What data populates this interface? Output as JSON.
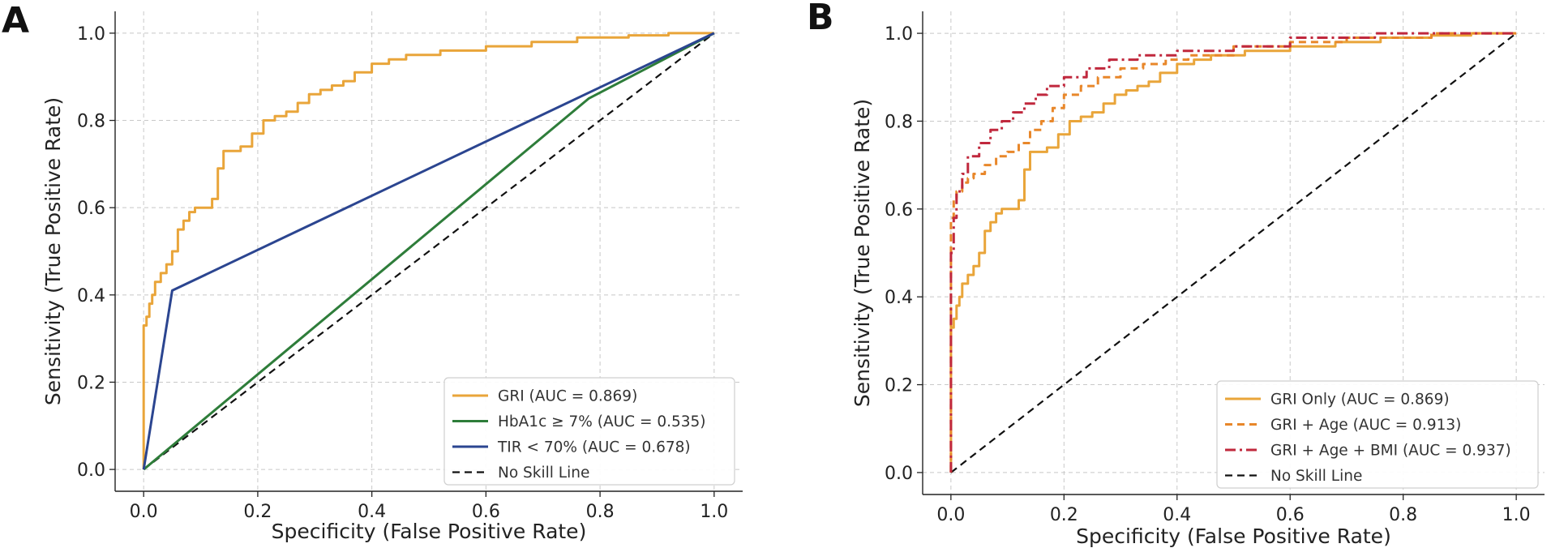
{
  "chart_data": [
    {
      "type": "line",
      "panel_label": "A",
      "xlabel": "Specificity (False Positive Rate)",
      "ylabel": "Sensitivity (True Positive Rate)",
      "xlim": [
        -0.05,
        1.05
      ],
      "ylim": [
        -0.05,
        1.05
      ],
      "xticks": [
        0.0,
        0.2,
        0.4,
        0.6,
        0.8,
        1.0
      ],
      "yticks": [
        0.0,
        0.2,
        0.4,
        0.6,
        0.8,
        1.0
      ],
      "xtick_labels": [
        "0.0",
        "0.2",
        "0.4",
        "0.6",
        "0.8",
        "1.0"
      ],
      "ytick_labels": [
        "0.0",
        "0.2",
        "0.4",
        "0.6",
        "0.8",
        "1.0"
      ],
      "grid": true,
      "legend_position": "lower-right",
      "series": [
        {
          "name": "GRI (AUC = 0.869)",
          "color": "#e9a53a",
          "style": "solid",
          "x": [
            0,
            0,
            0.005,
            0.005,
            0.01,
            0.01,
            0.015,
            0.015,
            0.02,
            0.02,
            0.03,
            0.03,
            0.04,
            0.04,
            0.05,
            0.05,
            0.06,
            0.06,
            0.07,
            0.07,
            0.08,
            0.08,
            0.09,
            0.09,
            0.12,
            0.12,
            0.13,
            0.13,
            0.14,
            0.14,
            0.17,
            0.17,
            0.19,
            0.19,
            0.21,
            0.21,
            0.23,
            0.23,
            0.25,
            0.25,
            0.27,
            0.27,
            0.29,
            0.29,
            0.31,
            0.31,
            0.33,
            0.33,
            0.35,
            0.35,
            0.37,
            0.37,
            0.4,
            0.4,
            0.43,
            0.43,
            0.46,
            0.46,
            0.52,
            0.52,
            0.6,
            0.6,
            0.68,
            0.68,
            0.76,
            0.76,
            0.85,
            0.85,
            0.92,
            0.92,
            1.0
          ],
          "y": [
            0,
            0.33,
            0.33,
            0.35,
            0.35,
            0.38,
            0.38,
            0.4,
            0.4,
            0.43,
            0.43,
            0.45,
            0.45,
            0.47,
            0.47,
            0.5,
            0.5,
            0.55,
            0.55,
            0.57,
            0.57,
            0.59,
            0.59,
            0.6,
            0.6,
            0.62,
            0.62,
            0.69,
            0.69,
            0.73,
            0.73,
            0.74,
            0.74,
            0.77,
            0.77,
            0.8,
            0.8,
            0.81,
            0.81,
            0.82,
            0.82,
            0.84,
            0.84,
            0.86,
            0.86,
            0.87,
            0.87,
            0.88,
            0.88,
            0.89,
            0.89,
            0.91,
            0.91,
            0.93,
            0.93,
            0.94,
            0.94,
            0.95,
            0.95,
            0.96,
            0.96,
            0.97,
            0.97,
            0.98,
            0.98,
            0.99,
            0.99,
            0.995,
            0.995,
            1.0,
            1.0
          ]
        },
        {
          "name": "HbA1c ≥ 7% (AUC = 0.535)",
          "color": "#2e7d3a",
          "style": "solid",
          "x": [
            0,
            0.78,
            1.0
          ],
          "y": [
            0,
            0.85,
            1.0
          ]
        },
        {
          "name": "TIR < 70% (AUC = 0.678)",
          "color": "#2b4590",
          "style": "solid",
          "x": [
            0,
            0.05,
            1.0
          ],
          "y": [
            0,
            0.41,
            1.0
          ]
        },
        {
          "name": "No Skill Line",
          "color": "#111111",
          "style": "dashed",
          "x": [
            0,
            1.0
          ],
          "y": [
            0,
            1.0
          ]
        }
      ]
    },
    {
      "type": "line",
      "panel_label": "B",
      "xlabel": "Specificity (False Positive Rate)",
      "ylabel": "Sensitivity (True Positive Rate)",
      "xlim": [
        -0.05,
        1.05
      ],
      "ylim": [
        -0.05,
        1.05
      ],
      "xticks": [
        0.0,
        0.2,
        0.4,
        0.6,
        0.8,
        1.0
      ],
      "yticks": [
        0.0,
        0.2,
        0.4,
        0.6,
        0.8,
        1.0
      ],
      "xtick_labels": [
        "0.0",
        "0.2",
        "0.4",
        "0.6",
        "0.8",
        "1.0"
      ],
      "ytick_labels": [
        "0.0",
        "0.2",
        "0.4",
        "0.6",
        "0.8",
        "1.0"
      ],
      "grid": true,
      "legend_position": "lower-right",
      "series": [
        {
          "name": "GRI Only (AUC = 0.869)",
          "color": "#e9a53a",
          "style": "solid",
          "x": [
            0,
            0,
            0.005,
            0.005,
            0.01,
            0.01,
            0.015,
            0.015,
            0.02,
            0.02,
            0.03,
            0.03,
            0.04,
            0.04,
            0.05,
            0.05,
            0.06,
            0.06,
            0.07,
            0.07,
            0.08,
            0.08,
            0.09,
            0.09,
            0.12,
            0.12,
            0.13,
            0.13,
            0.14,
            0.14,
            0.17,
            0.17,
            0.19,
            0.19,
            0.21,
            0.21,
            0.23,
            0.23,
            0.25,
            0.25,
            0.27,
            0.27,
            0.29,
            0.29,
            0.31,
            0.31,
            0.33,
            0.33,
            0.35,
            0.35,
            0.37,
            0.37,
            0.4,
            0.4,
            0.43,
            0.43,
            0.46,
            0.46,
            0.52,
            0.52,
            0.6,
            0.6,
            0.68,
            0.68,
            0.76,
            0.76,
            0.85,
            0.85,
            0.92,
            0.92,
            1.0
          ],
          "y": [
            0,
            0.33,
            0.33,
            0.35,
            0.35,
            0.38,
            0.38,
            0.4,
            0.4,
            0.43,
            0.43,
            0.45,
            0.45,
            0.47,
            0.47,
            0.5,
            0.5,
            0.55,
            0.55,
            0.57,
            0.57,
            0.59,
            0.59,
            0.6,
            0.6,
            0.62,
            0.62,
            0.69,
            0.69,
            0.73,
            0.73,
            0.74,
            0.74,
            0.77,
            0.77,
            0.8,
            0.8,
            0.81,
            0.81,
            0.82,
            0.82,
            0.84,
            0.84,
            0.86,
            0.86,
            0.87,
            0.87,
            0.88,
            0.88,
            0.89,
            0.89,
            0.91,
            0.91,
            0.93,
            0.93,
            0.94,
            0.94,
            0.95,
            0.95,
            0.96,
            0.96,
            0.97,
            0.97,
            0.98,
            0.98,
            0.99,
            0.99,
            0.995,
            0.995,
            1.0,
            1.0
          ]
        },
        {
          "name": "GRI + Age (AUC = 0.913)",
          "color": "#e8872a",
          "style": "dashed",
          "x": [
            0,
            0,
            0.005,
            0.005,
            0.01,
            0.01,
            0.02,
            0.02,
            0.03,
            0.03,
            0.04,
            0.04,
            0.06,
            0.06,
            0.08,
            0.08,
            0.1,
            0.1,
            0.12,
            0.12,
            0.14,
            0.14,
            0.16,
            0.16,
            0.18,
            0.18,
            0.2,
            0.2,
            0.23,
            0.23,
            0.26,
            0.26,
            0.3,
            0.3,
            0.34,
            0.34,
            0.38,
            0.38,
            0.42,
            0.42,
            0.5,
            0.5,
            0.6,
            0.6,
            0.7,
            0.7,
            0.85,
            0.85,
            1.0
          ],
          "y": [
            0,
            0.58,
            0.58,
            0.62,
            0.62,
            0.64,
            0.64,
            0.66,
            0.66,
            0.67,
            0.67,
            0.68,
            0.68,
            0.7,
            0.7,
            0.72,
            0.72,
            0.73,
            0.73,
            0.75,
            0.75,
            0.78,
            0.78,
            0.8,
            0.8,
            0.83,
            0.83,
            0.86,
            0.86,
            0.88,
            0.88,
            0.9,
            0.9,
            0.92,
            0.92,
            0.93,
            0.93,
            0.94,
            0.94,
            0.95,
            0.95,
            0.97,
            0.97,
            0.98,
            0.98,
            0.99,
            0.99,
            1.0,
            1.0
          ]
        },
        {
          "name": "GRI + Age + BMI (AUC = 0.937)",
          "color": "#c0283d",
          "style": "dashdot",
          "x": [
            0,
            0,
            0.005,
            0.005,
            0.01,
            0.01,
            0.02,
            0.02,
            0.03,
            0.03,
            0.05,
            0.05,
            0.07,
            0.07,
            0.09,
            0.09,
            0.11,
            0.11,
            0.13,
            0.13,
            0.15,
            0.15,
            0.17,
            0.17,
            0.2,
            0.2,
            0.24,
            0.24,
            0.28,
            0.28,
            0.33,
            0.33,
            0.4,
            0.4,
            0.5,
            0.5,
            0.6,
            0.6,
            0.75,
            0.75,
            1.0
          ],
          "y": [
            0,
            0.5,
            0.5,
            0.58,
            0.58,
            0.64,
            0.64,
            0.68,
            0.68,
            0.72,
            0.72,
            0.75,
            0.75,
            0.78,
            0.78,
            0.8,
            0.8,
            0.82,
            0.82,
            0.84,
            0.84,
            0.86,
            0.86,
            0.88,
            0.88,
            0.9,
            0.9,
            0.92,
            0.92,
            0.94,
            0.94,
            0.95,
            0.95,
            0.96,
            0.96,
            0.97,
            0.97,
            0.99,
            0.99,
            1.0,
            1.0
          ]
        },
        {
          "name": "No Skill Line",
          "color": "#111111",
          "style": "dashed",
          "x": [
            0,
            1.0
          ],
          "y": [
            0,
            1.0
          ]
        }
      ]
    }
  ]
}
